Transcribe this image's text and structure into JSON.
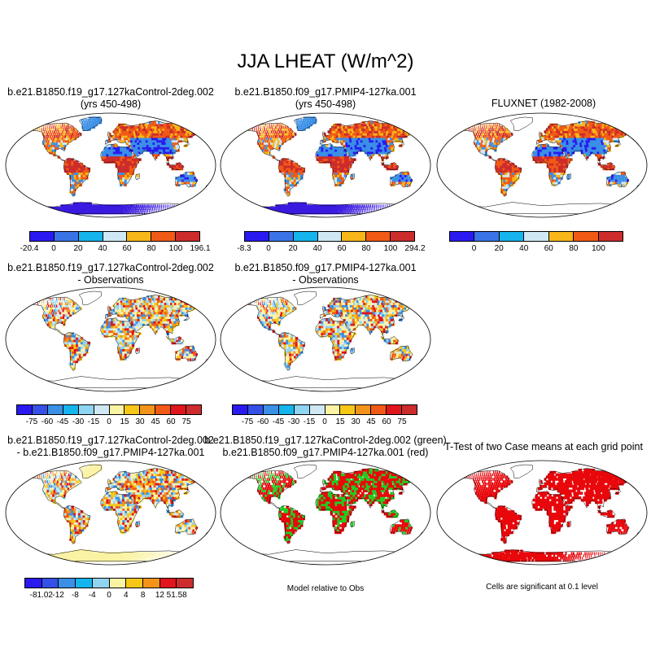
{
  "title": "JJA LHEAT (W/m^2)",
  "panels": {
    "p1": {
      "line1": "b.e21.B1850.f19_g17.127kaControl-2deg.002",
      "line2": "(yrs 450-498)"
    },
    "p2": {
      "line1": "b.e21.B1850.f09_g17.PMIP4-127ka.001",
      "line2": "(yrs 450-498)"
    },
    "p3": {
      "line1": "FLUXNET (1982-2008)"
    },
    "p4": {
      "line1": "b.e21.B1850.f19_g17.127kaControl-2deg.002",
      "line2": "- Observations"
    },
    "p5": {
      "line1": "b.e21.B1850.f09_g17.PMIP4-127ka.001",
      "line2": "- Observations"
    },
    "p6": {
      "line1": "b.e21.B1850.f19_g17.127kaControl-2deg.002",
      "line2": "- b.e21.B1850.f09_g17.PMIP4-127ka.001"
    },
    "p7": {
      "line1": "b.e21.B1850.f19_g17.127kaControl-2deg.002 (green)",
      "line2": "b.e21.B1850.f09_g17.PMIP4-127ka.001 (red)"
    },
    "p8": {
      "line1": "T-Test of two Case means at each grid point"
    }
  },
  "notes": {
    "model_rel_obs": "Model relative to Obs",
    "significance": "Cells are significant at 0.1 level"
  },
  "colorbars": {
    "cb1": {
      "labels": [
        "-20.4",
        "0",
        "20",
        "40",
        "60",
        "80",
        "100",
        "196.1"
      ],
      "colors": [
        "#2a1af0",
        "#3a73e6",
        "#16b4ec",
        "#cfe8f4",
        "#f7b718",
        "#f15a16",
        "#cc2c2c"
      ]
    },
    "cb2": {
      "labels": [
        "-8.3",
        "0",
        "20",
        "40",
        "60",
        "80",
        "100",
        "294.2"
      ],
      "colors": [
        "#2a1af0",
        "#3a73e6",
        "#16b4ec",
        "#cfe8f4",
        "#f7b718",
        "#f15a16",
        "#cc2c2c"
      ]
    },
    "cb3": {
      "labels": [
        "0",
        "20",
        "40",
        "60",
        "80",
        "100"
      ],
      "colors": [
        "#2a1af0",
        "#3a73e6",
        "#16b4ec",
        "#cfe8f4",
        "#f7b718",
        "#f15a16",
        "#cc2c2c"
      ]
    },
    "cb4": {
      "labels": [
        "-75",
        "-60",
        "-45",
        "-30",
        "-15",
        "0",
        "15",
        "30",
        "45",
        "60",
        "75"
      ],
      "colors": [
        "#2a1af0",
        "#3550e6",
        "#3a8fe6",
        "#16b4ec",
        "#8fd4f0",
        "#cfe8f4",
        "#fbf3a4",
        "#f7c718",
        "#f3931a",
        "#f15a16",
        "#e0161c",
        "#cc2c2c"
      ]
    },
    "cb5": {
      "labels": [
        "-75",
        "-60",
        "-45",
        "-30",
        "-15",
        "0",
        "15",
        "30",
        "45",
        "60",
        "75"
      ],
      "colors": [
        "#2a1af0",
        "#3550e6",
        "#3a8fe6",
        "#16b4ec",
        "#8fd4f0",
        "#cfe8f4",
        "#fbf3a4",
        "#f7c718",
        "#f3931a",
        "#f15a16",
        "#e0161c",
        "#cc2c2c"
      ]
    },
    "cb6": {
      "labels": [
        "-81.02",
        "-12",
        "-8",
        "-4",
        "0",
        "4",
        "8",
        "12",
        "51.58"
      ],
      "colors": [
        "#2a1af0",
        "#3550e6",
        "#3a8fe6",
        "#16b4ec",
        "#8fd4f0",
        "#fbf3a4",
        "#f7c718",
        "#f3931a",
        "#e0161c",
        "#cc2c2c"
      ]
    }
  },
  "map_colors": {
    "ocean": "#ffffff",
    "land_cool": "#3a8fe6",
    "land_warm": "#f15a16",
    "land_hot": "#cc2c2c",
    "land_mid": "#f7b718",
    "land_light": "#cfe8f4",
    "antarctic": "#3a1ae0",
    "sig_green": "#22cc22",
    "sig_red": "#e8080c"
  }
}
